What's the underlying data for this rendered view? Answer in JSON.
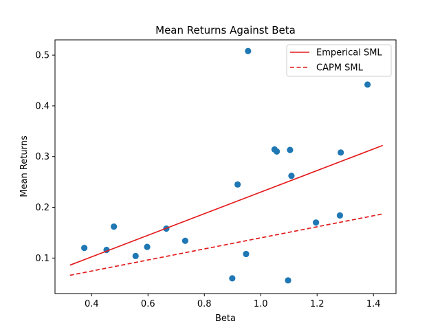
{
  "chart_data": {
    "type": "scatter",
    "title": "Mean Returns Against Beta",
    "xlabel": "Beta",
    "ylabel": "Mean Returns",
    "xlim": [
      0.27,
      1.48
    ],
    "ylim": [
      0.03,
      0.53
    ],
    "xticks": [
      0.4,
      0.6,
      0.8,
      1.0,
      1.2,
      1.4
    ],
    "xtick_labels": [
      "0.4",
      "0.6",
      "0.8",
      "1.0",
      "1.2",
      "1.4"
    ],
    "yticks": [
      0.1,
      0.2,
      0.3,
      0.4,
      0.5
    ],
    "ytick_labels": [
      "0.1",
      "0.2",
      "0.3",
      "0.4",
      "0.5"
    ],
    "grid": false,
    "legend_position": "top-right",
    "points": {
      "color": "#1f77b4",
      "x": [
        0.374,
        0.453,
        0.479,
        0.556,
        0.597,
        0.665,
        0.732,
        0.899,
        0.918,
        0.948,
        0.955,
        1.049,
        1.057,
        1.097,
        1.104,
        1.109,
        1.196,
        1.281,
        1.284,
        1.379
      ],
      "y": [
        0.12,
        0.116,
        0.162,
        0.104,
        0.122,
        0.158,
        0.134,
        0.06,
        0.245,
        0.108,
        0.508,
        0.314,
        0.31,
        0.056,
        0.313,
        0.262,
        0.17,
        0.184,
        0.308,
        0.442
      ]
    },
    "series": [
      {
        "name": "Emperical SML",
        "color": "#e31a1c",
        "style": "solid",
        "x": [
          0.323,
          1.433
        ],
        "y": [
          0.086,
          0.322
        ]
      },
      {
        "name": "CAPM SML",
        "color": "#e31a1c",
        "style": "dashed",
        "x": [
          0.323,
          1.433
        ],
        "y": [
          0.066,
          0.187
        ]
      }
    ]
  }
}
